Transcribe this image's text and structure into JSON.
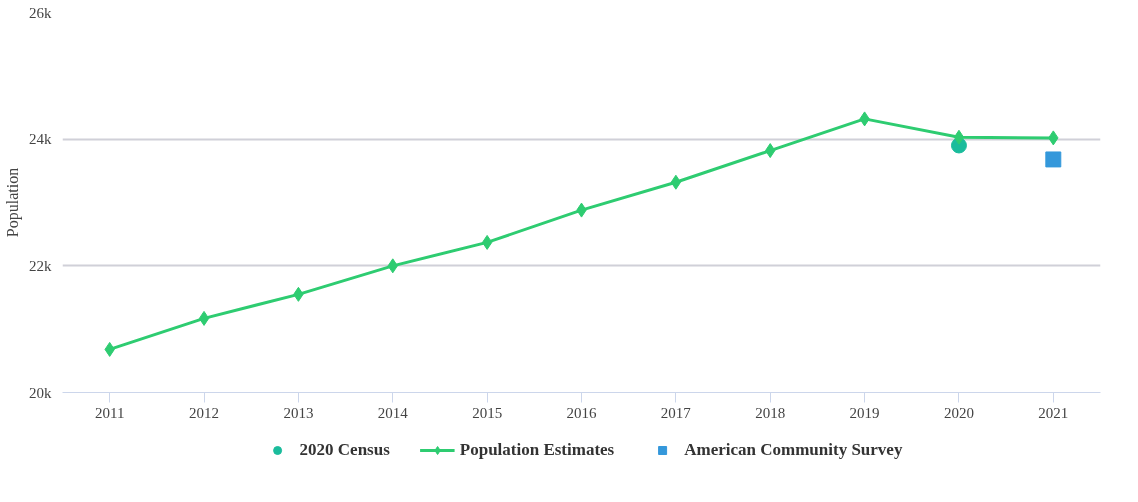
{
  "chart_data": {
    "type": "line",
    "ylabel": "Population",
    "categories": [
      "2011",
      "2012",
      "2013",
      "2014",
      "2015",
      "2016",
      "2017",
      "2018",
      "2019",
      "2020",
      "2021"
    ],
    "series": [
      {
        "name": "2020 Census",
        "type": "scatter",
        "marker": "circle",
        "color": "#1abc9c",
        "values": [
          null,
          null,
          null,
          null,
          null,
          null,
          null,
          null,
          null,
          23900,
          null
        ]
      },
      {
        "name": "Population Estimates",
        "marker": "diamond",
        "color": "#2ecc71",
        "values": [
          20680,
          21170,
          21550,
          22000,
          22370,
          22880,
          23320,
          23820,
          24320,
          24030,
          24020
        ]
      },
      {
        "name": "American Community Survey",
        "type": "scatter",
        "marker": "square",
        "color": "#3498db",
        "values": [
          null,
          null,
          null,
          null,
          null,
          null,
          null,
          null,
          null,
          null,
          23680
        ]
      }
    ],
    "ylim": [
      20000,
      26000
    ],
    "yticks": [
      {
        "value": 20000,
        "label": "20k"
      },
      {
        "value": 22000,
        "label": "22k"
      },
      {
        "value": 24000,
        "label": "24k"
      },
      {
        "value": 26000,
        "label": "26k"
      }
    ],
    "grid": "y",
    "legend": "bottom"
  }
}
